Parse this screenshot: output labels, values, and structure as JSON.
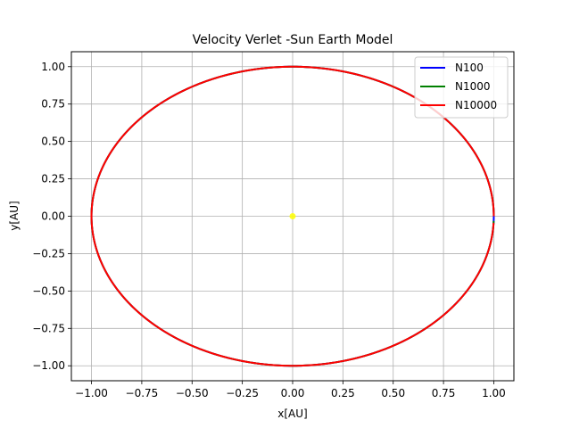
{
  "chart_data": {
    "type": "line",
    "title": "Velocity Verlet -Sun Earth Model",
    "xlabel": "x[AU]",
    "ylabel": "y[AU]",
    "xlim": [
      -1.1,
      1.1
    ],
    "ylim": [
      -1.1,
      1.1
    ],
    "xticks": [
      -1.0,
      -0.75,
      -0.5,
      -0.25,
      0.0,
      0.25,
      0.5,
      0.75,
      1.0
    ],
    "yticks": [
      -1.0,
      -0.75,
      -0.5,
      -0.25,
      0.0,
      0.25,
      0.5,
      0.75,
      1.0
    ],
    "xtick_labels": [
      "−1.00",
      "−0.75",
      "−0.50",
      "−0.25",
      "0.00",
      "0.25",
      "0.50",
      "0.75",
      "1.00"
    ],
    "ytick_labels": [
      "−1.00",
      "−0.75",
      "−0.50",
      "−0.25",
      "0.00",
      "0.25",
      "0.50",
      "0.75",
      "1.00"
    ],
    "grid": true,
    "legend_position": "top-right",
    "series": [
      {
        "name": "N100",
        "color": "#0000ff",
        "shape": "circle",
        "center": [
          0.0,
          0.0
        ],
        "radius": 1.0,
        "t_start": 0.0,
        "t_end": 1.0
      },
      {
        "name": "N1000",
        "color": "#008000",
        "shape": "circle",
        "center": [
          0.0,
          0.0
        ],
        "radius": 1.0,
        "t_start": 0.0,
        "t_end": 0.995
      },
      {
        "name": "N10000",
        "color": "#ff0000",
        "shape": "circle",
        "center": [
          0.0,
          0.0
        ],
        "radius": 1.0,
        "t_start": 0.0,
        "t_end": 0.993
      }
    ],
    "sun": {
      "x": 0.0,
      "y": 0.0,
      "color": "#ffff00"
    }
  }
}
